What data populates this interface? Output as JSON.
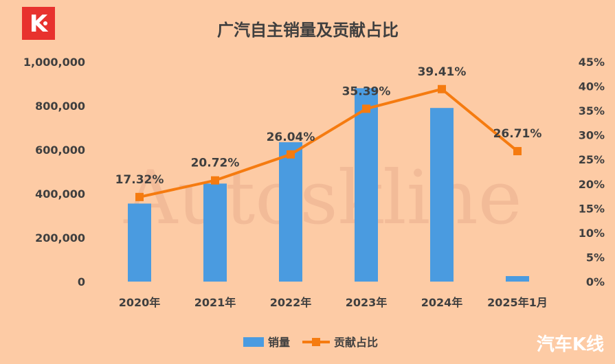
{
  "chart_data": {
    "type": "bar",
    "title": "广汽自主销量及贡献占比",
    "categories": [
      "2020年",
      "2021年",
      "2022年",
      "2023年",
      "2024年",
      "2025年1月"
    ],
    "series": [
      {
        "name": "销量",
        "type": "bar",
        "axis": "left",
        "color": "#4A9BE0",
        "values": [
          355000,
          446000,
          634000,
          880000,
          790000,
          25000
        ]
      },
      {
        "name": "贡献占比",
        "type": "line",
        "axis": "right",
        "color": "#F57B10",
        "values": [
          17.32,
          20.72,
          26.04,
          35.39,
          39.41,
          26.71
        ],
        "labels": [
          "17.32%",
          "20.72%",
          "26.04%",
          "35.39%",
          "39.41%",
          "26.71%"
        ]
      }
    ],
    "y_left": {
      "ylim": [
        0,
        1000000
      ],
      "ticks": [
        0,
        200000,
        400000,
        600000,
        800000,
        1000000
      ],
      "tick_labels": [
        "0",
        "200,000",
        "400,000",
        "600,000",
        "800,000",
        "1,000,000"
      ]
    },
    "y_right": {
      "ylim": [
        0,
        45
      ],
      "ticks": [
        0,
        5,
        10,
        15,
        20,
        25,
        30,
        35,
        40,
        45
      ],
      "tick_labels": [
        "0%",
        "5%",
        "10%",
        "15%",
        "20%",
        "25%",
        "30%",
        "35%",
        "40%",
        "45%"
      ]
    },
    "grid": false,
    "legend_position": "bottom-center",
    "watermark": "Autoskline"
  },
  "branding": {
    "logo_letter": "K",
    "footer_text": "汽车K线"
  },
  "colors": {
    "background": "#FDCBA5",
    "text": "#3F3F3F",
    "logo_bg": "#E8322E"
  }
}
